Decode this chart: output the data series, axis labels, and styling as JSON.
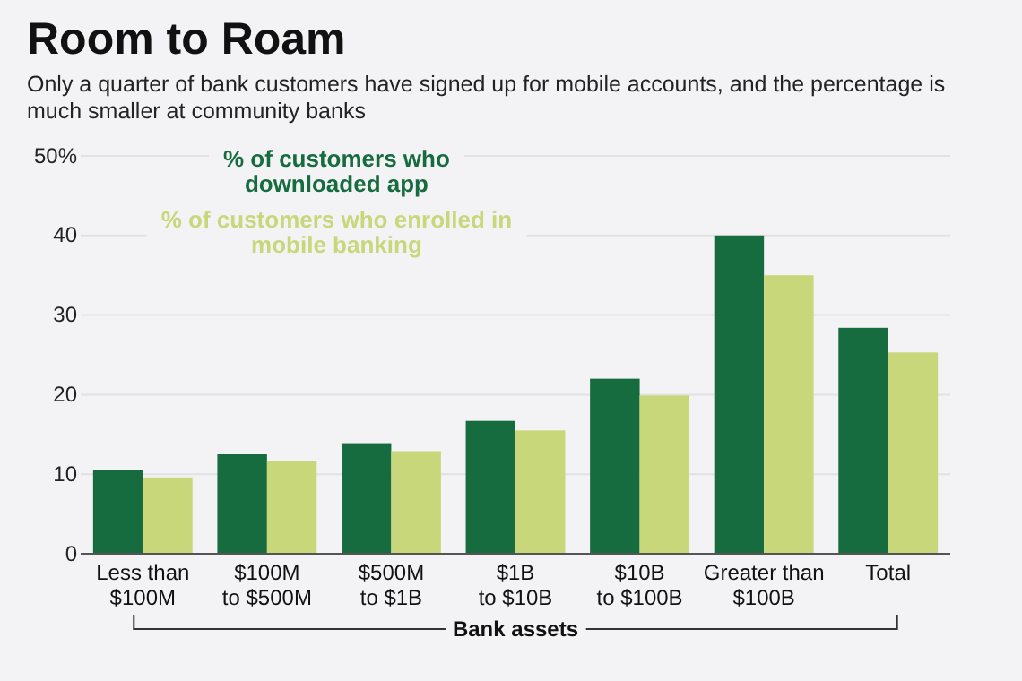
{
  "chart_data": {
    "type": "bar",
    "title": "Room to Roam",
    "subtitle": "Only a quarter of bank customers have signed up for mobile accounts, and the percentage is much smaller at community banks",
    "xlabel": "Bank assets",
    "categories": [
      "Less than $100M",
      "$100M to $500M",
      "$500M to $1B",
      "$1B to $10B",
      "$10B to $100B",
      "Greater than $100B",
      "Total"
    ],
    "series": [
      {
        "name": "% of customers who downloaded app",
        "color": "#166b3f",
        "values": [
          10.5,
          12.5,
          13.9,
          16.7,
          22.0,
          40.0,
          28.4
        ]
      },
      {
        "name": "% of customers who enrolled in mobile banking",
        "color": "#c8d77a",
        "values": [
          9.6,
          11.6,
          12.9,
          15.5,
          19.9,
          35.0,
          25.3
        ]
      }
    ],
    "ylim": [
      0,
      50
    ],
    "yticks": [
      0,
      10,
      20,
      30,
      40,
      {
        "value": 50,
        "label": "50%"
      }
    ],
    "grid": "y",
    "legend": "top left"
  }
}
